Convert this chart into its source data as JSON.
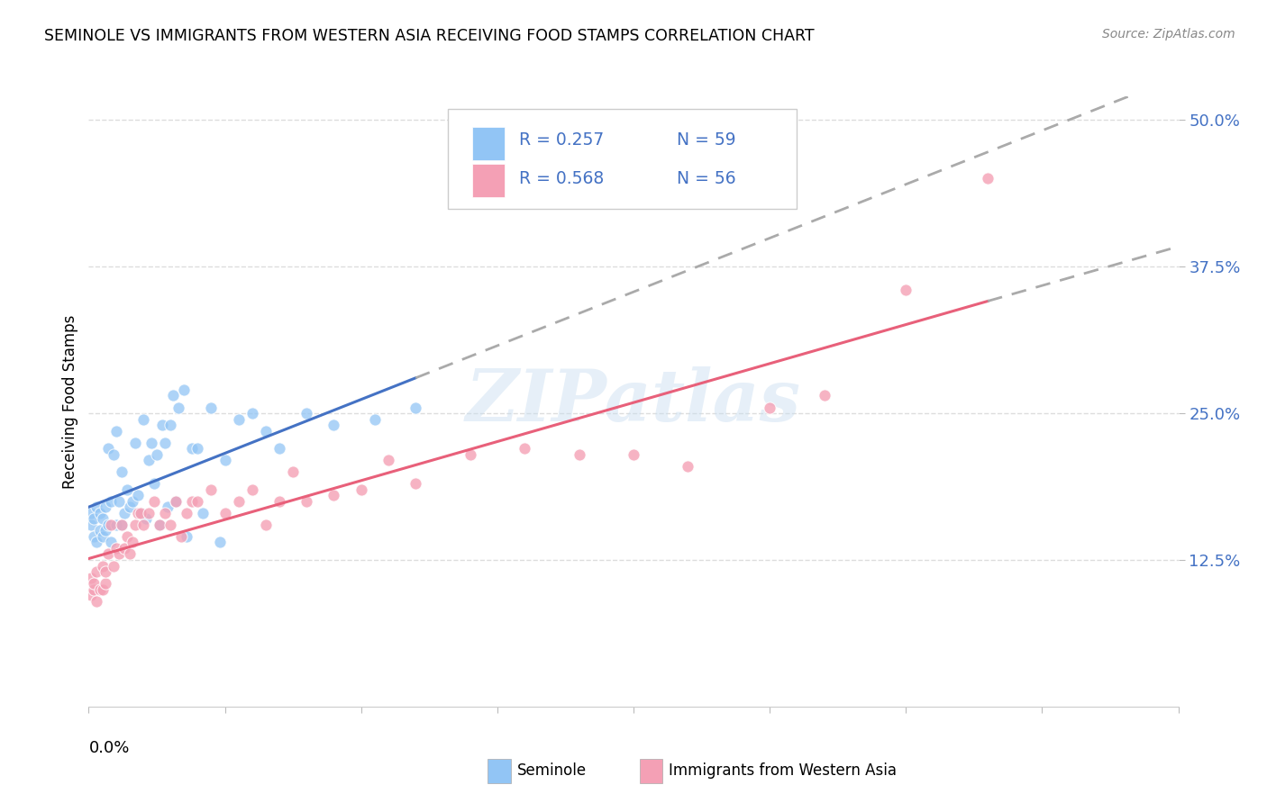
{
  "title": "SEMINOLE VS IMMIGRANTS FROM WESTERN ASIA RECEIVING FOOD STAMPS CORRELATION CHART",
  "source": "Source: ZipAtlas.com",
  "ylabel": "Receiving Food Stamps",
  "ytick_vals": [
    0.125,
    0.25,
    0.375,
    0.5
  ],
  "xlim": [
    0.0,
    0.4
  ],
  "ylim": [
    0.0,
    0.52
  ],
  "legend_r1": "R = 0.257",
  "legend_n1": "N = 59",
  "legend_r2": "R = 0.568",
  "legend_n2": "N = 56",
  "seminole_color": "#92c5f5",
  "immigrants_color": "#f4a0b5",
  "trendline_blue": "#4472c4",
  "trendline_pink": "#e8607a",
  "trendline_dashed": "#aaaaaa",
  "watermark": "ZIPatlas",
  "background_color": "#ffffff",
  "grid_color": "#dddddd",
  "seminole_x": [
    0.001,
    0.001,
    0.002,
    0.002,
    0.003,
    0.003,
    0.004,
    0.004,
    0.005,
    0.005,
    0.006,
    0.006,
    0.007,
    0.007,
    0.008,
    0.008,
    0.009,
    0.01,
    0.01,
    0.011,
    0.012,
    0.012,
    0.013,
    0.014,
    0.015,
    0.016,
    0.017,
    0.018,
    0.019,
    0.02,
    0.021,
    0.022,
    0.023,
    0.024,
    0.025,
    0.026,
    0.027,
    0.028,
    0.029,
    0.03,
    0.031,
    0.032,
    0.033,
    0.035,
    0.036,
    0.038,
    0.04,
    0.042,
    0.045,
    0.048,
    0.05,
    0.055,
    0.06,
    0.065,
    0.07,
    0.08,
    0.09,
    0.105,
    0.12
  ],
  "seminole_y": [
    0.155,
    0.165,
    0.145,
    0.16,
    0.14,
    0.17,
    0.15,
    0.165,
    0.145,
    0.16,
    0.15,
    0.17,
    0.22,
    0.155,
    0.14,
    0.175,
    0.215,
    0.235,
    0.155,
    0.175,
    0.2,
    0.155,
    0.165,
    0.185,
    0.17,
    0.175,
    0.225,
    0.18,
    0.165,
    0.245,
    0.16,
    0.21,
    0.225,
    0.19,
    0.215,
    0.155,
    0.24,
    0.225,
    0.17,
    0.24,
    0.265,
    0.175,
    0.255,
    0.27,
    0.145,
    0.22,
    0.22,
    0.165,
    0.255,
    0.14,
    0.21,
    0.245,
    0.25,
    0.235,
    0.22,
    0.25,
    0.24,
    0.245,
    0.255
  ],
  "immigrants_x": [
    0.001,
    0.001,
    0.002,
    0.002,
    0.003,
    0.003,
    0.004,
    0.005,
    0.005,
    0.006,
    0.006,
    0.007,
    0.008,
    0.009,
    0.01,
    0.011,
    0.012,
    0.013,
    0.014,
    0.015,
    0.016,
    0.017,
    0.018,
    0.019,
    0.02,
    0.022,
    0.024,
    0.026,
    0.028,
    0.03,
    0.032,
    0.034,
    0.036,
    0.038,
    0.04,
    0.045,
    0.05,
    0.055,
    0.06,
    0.065,
    0.07,
    0.075,
    0.08,
    0.09,
    0.1,
    0.11,
    0.12,
    0.14,
    0.16,
    0.18,
    0.2,
    0.22,
    0.25,
    0.27,
    0.3,
    0.33
  ],
  "immigrants_y": [
    0.11,
    0.095,
    0.1,
    0.105,
    0.09,
    0.115,
    0.1,
    0.1,
    0.12,
    0.105,
    0.115,
    0.13,
    0.155,
    0.12,
    0.135,
    0.13,
    0.155,
    0.135,
    0.145,
    0.13,
    0.14,
    0.155,
    0.165,
    0.165,
    0.155,
    0.165,
    0.175,
    0.155,
    0.165,
    0.155,
    0.175,
    0.145,
    0.165,
    0.175,
    0.175,
    0.185,
    0.165,
    0.175,
    0.185,
    0.155,
    0.175,
    0.2,
    0.175,
    0.18,
    0.185,
    0.21,
    0.19,
    0.215,
    0.22,
    0.215,
    0.215,
    0.205,
    0.255,
    0.265,
    0.355,
    0.45
  ]
}
